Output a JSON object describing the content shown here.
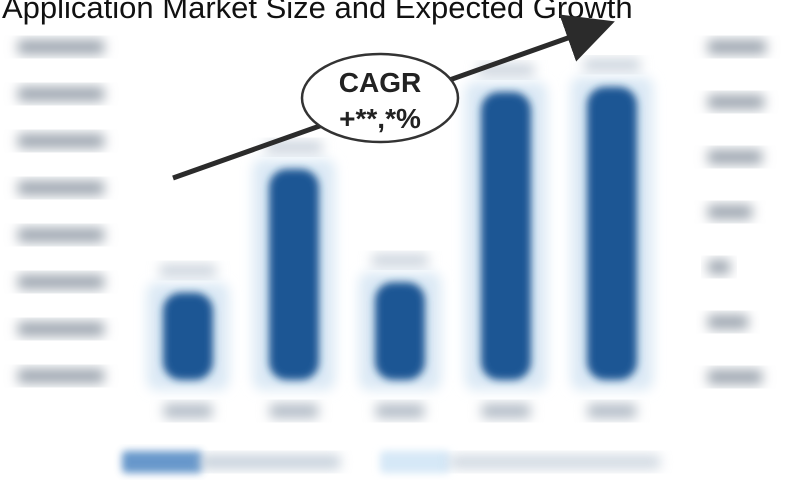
{
  "page": {
    "title": "Application Market Size and Expected Growth"
  },
  "annotation": {
    "line1": "CAGR",
    "line2": "+**,*%"
  },
  "colors": {
    "bar": "#1a5694",
    "bar_light": "#dbe9f5",
    "arrow": "#2b2b2b",
    "axis_text": "#9aa3ad",
    "legend_dark": "#4d86c2",
    "legend_light": "#d6e8f7"
  },
  "chart_data": {
    "type": "bar",
    "categories": [
      "",
      "",
      "",
      "",
      ""
    ],
    "series": [
      {
        "values": [
          17,
          41,
          19,
          56,
          57
        ]
      }
    ],
    "ylim": [
      0,
      70
    ]
  }
}
